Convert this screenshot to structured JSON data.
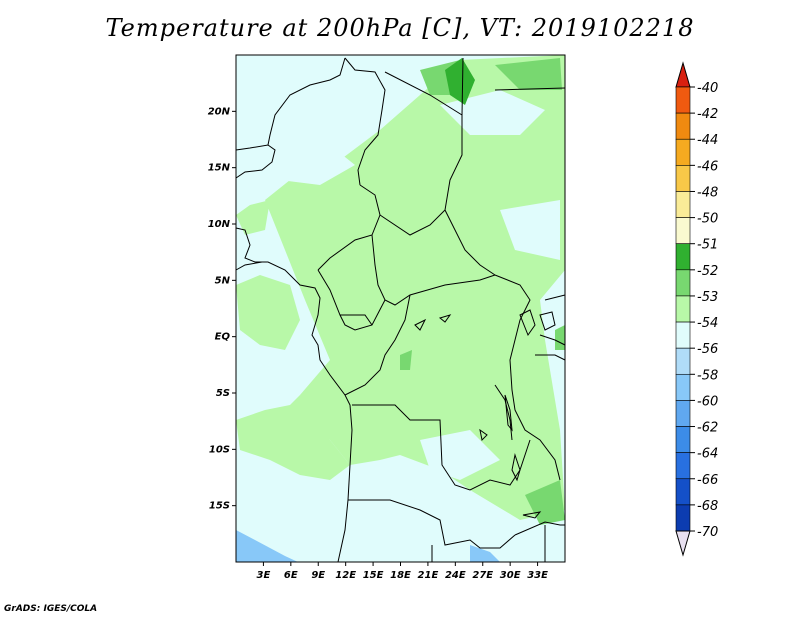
{
  "title": "Temperature at 200hPa [C], VT: 2019102218",
  "credit": "GrADS: IGES/COLA",
  "map": {
    "lon_range": [
      0,
      36
    ],
    "lat_range": [
      -20,
      25
    ],
    "lon_ticks": [
      "3E",
      "6E",
      "9E",
      "12E",
      "15E",
      "18E",
      "21E",
      "24E",
      "27E",
      "30E",
      "33E"
    ],
    "lat_ticks": [
      "20N",
      "15N",
      "10N",
      "5N",
      "EQ",
      "5S",
      "10S",
      "15S"
    ]
  },
  "legend": {
    "labels": [
      "-40",
      "-42",
      "-44",
      "-46",
      "-48",
      "-50",
      "-51",
      "-52",
      "-53",
      "-54",
      "-56",
      "-58",
      "-60",
      "-62",
      "-64",
      "-66",
      "-68",
      "-70"
    ],
    "colors": [
      "#e02010",
      "#f05a10",
      "#f08a10",
      "#f5aa20",
      "#f8c848",
      "#faec98",
      "#fafad0",
      "#30b030",
      "#78d870",
      "#b8f8a8",
      "#e0fcfc",
      "#b0dcf8",
      "#88c8f8",
      "#60a8f0",
      "#3c8ce8",
      "#2870e0",
      "#1450c8",
      "#0c3cb0",
      "#082890"
    ],
    "arrow_top_color": "#d82010",
    "arrow_bottom_color": "#e8e0f0"
  },
  "field_colors": {
    "base": "#e0fcfc",
    "band_54_53": "#b8f8a8",
    "band_53_52": "#78d870",
    "band_52_51": "#30b030",
    "cold": "#88c8f8"
  }
}
